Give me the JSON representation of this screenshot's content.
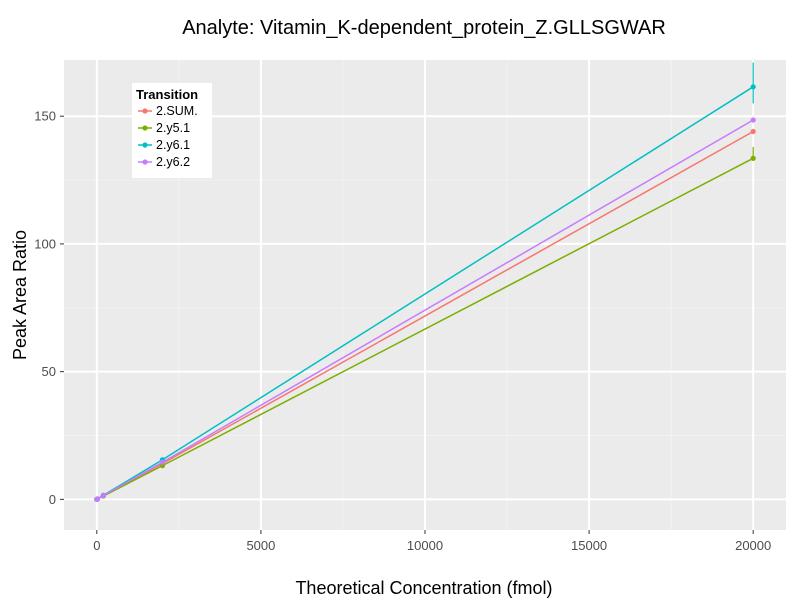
{
  "chart_data": {
    "type": "line",
    "title": "Analyte: Vitamin_K-dependent_protein_Z.GLLSGWAR",
    "xlabel": "Theoretical Concentration (fmol)",
    "ylabel": "Peak Area Ratio",
    "xlim": [
      -1000,
      21000
    ],
    "ylim": [
      -12,
      172
    ],
    "x_ticks": [
      0,
      5000,
      10000,
      15000,
      20000
    ],
    "x_tick_labels": [
      "0",
      "5000",
      "10000",
      "15000",
      "20000"
    ],
    "y_ticks": [
      0,
      50,
      100,
      150
    ],
    "y_tick_labels": [
      "0",
      "50",
      "100",
      "150"
    ],
    "grid": true,
    "legend": {
      "title": "Transition",
      "position": "top-left"
    },
    "series": [
      {
        "name": "2.SUM.",
        "color": "#F8766D",
        "x": [
          0,
          20,
          200,
          2000,
          20000
        ],
        "y": [
          0.0,
          0.15,
          1.4,
          14.0,
          144.0
        ],
        "error_bars": []
      },
      {
        "name": "2.y5.1",
        "color": "#7CAE00",
        "x": [
          0,
          20,
          200,
          2000,
          20000
        ],
        "y": [
          0.0,
          0.13,
          1.3,
          13.2,
          133.5
        ],
        "error_bars": [
          {
            "x": 20000,
            "low": 133.5,
            "high": 138.0
          }
        ]
      },
      {
        "name": "2.y6.1",
        "color": "#00BFC4",
        "x": [
          0,
          20,
          200,
          2000,
          20000
        ],
        "y": [
          0.0,
          0.16,
          1.6,
          15.5,
          161.5
        ],
        "error_bars": [
          {
            "x": 20000,
            "low": 155.0,
            "high": 171.0
          }
        ]
      },
      {
        "name": "2.y6.2",
        "color": "#C77CFF",
        "x": [
          0,
          20,
          200,
          2000,
          20000
        ],
        "y": [
          0.0,
          0.15,
          1.5,
          14.5,
          148.5
        ],
        "error_bars": []
      }
    ]
  }
}
